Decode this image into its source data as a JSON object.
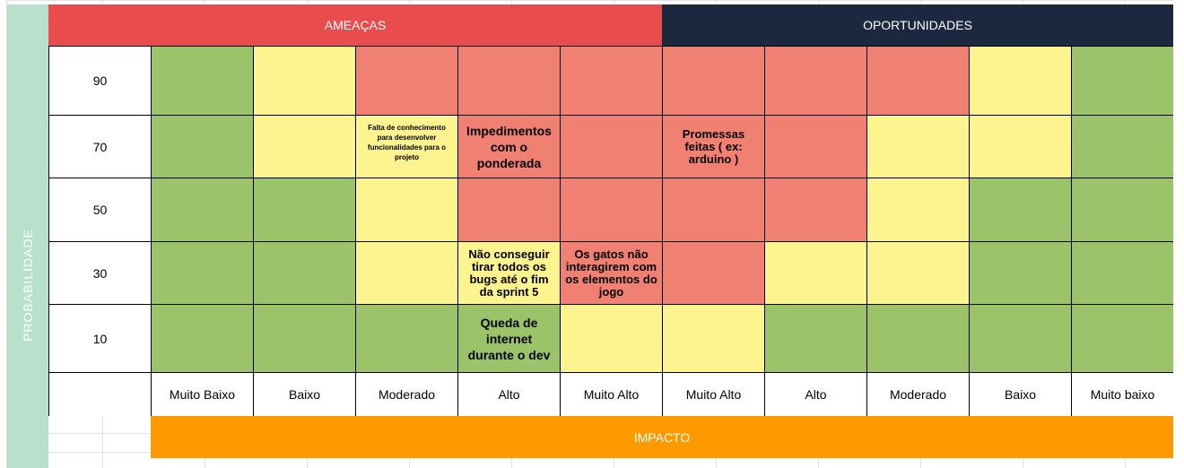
{
  "headers": {
    "threats": "AMEAÇAS",
    "opportunities": "OPORTUNIDADES"
  },
  "axis": {
    "probability": "PROBABILIDADE",
    "impact": "IMPACTO"
  },
  "probability_rows": [
    "90",
    "70",
    "50",
    "30",
    "10"
  ],
  "impact_columns": [
    "Muito Baixo",
    "Baixo",
    "Moderado",
    "Alto",
    "Muito Alto",
    "Muito Alto",
    "Alto",
    "Moderado",
    "Baixo",
    "Muito baixo"
  ],
  "colors": {
    "green": "#9bc36a",
    "yellow": "#fdf38f",
    "red": "#f08072",
    "threat_header": "#e94c4c",
    "opportunity_header": "#1c2840",
    "impact_bar": "#ff9900",
    "probability_bar": "#b7e1cd"
  },
  "matrix": [
    [
      "green",
      "yellow",
      "red",
      "red",
      "red",
      "red",
      "red",
      "red",
      "yellow",
      "green"
    ],
    [
      "green",
      "yellow",
      "yellow",
      "red",
      "red",
      "red",
      "red",
      "yellow",
      "yellow",
      "green"
    ],
    [
      "green",
      "green",
      "yellow",
      "red",
      "red",
      "red",
      "red",
      "yellow",
      "green",
      "green"
    ],
    [
      "green",
      "green",
      "yellow",
      "yellow",
      "red",
      "red",
      "yellow",
      "yellow",
      "green",
      "green"
    ],
    [
      "green",
      "green",
      "green",
      "green",
      "yellow",
      "yellow",
      "green",
      "green",
      "green",
      "green"
    ]
  ],
  "risks": {
    "falta_conhecimento": "Falta de conhecimento para desenvolver funcionalidades para o projeto",
    "impedimentos": "Impedimentos com o ponderada",
    "promessas": "Promessas feitas ( ex: arduino )",
    "nao_conseguir": "Não conseguir tirar todos os bugs até o fim da sprint 5",
    "gatos": "Os gatos não interagirem com os elementos do jogo",
    "queda_internet": "Queda de internet durante o dev"
  }
}
